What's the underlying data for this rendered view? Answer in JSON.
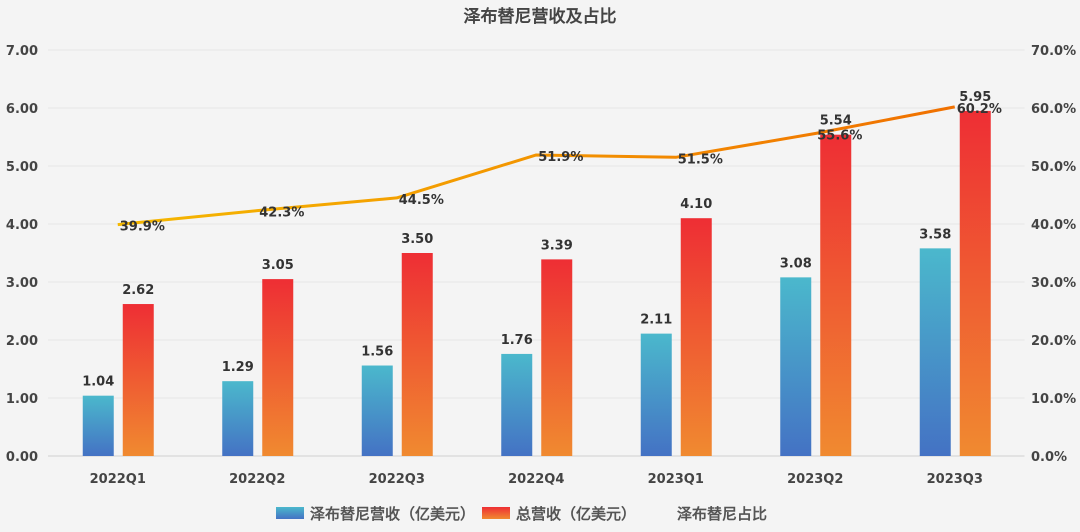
{
  "chart_data": {
    "type": "bar",
    "title": "泽布替尼营收及占比",
    "categories": [
      "2022Q1",
      "2022Q2",
      "2022Q3",
      "2022Q4",
      "2023Q1",
      "2023Q2",
      "2023Q3"
    ],
    "series": [
      {
        "name": "泽布替尼营收（亿美元）",
        "type": "bar",
        "axis": "left",
        "values": [
          1.04,
          1.29,
          1.56,
          1.76,
          2.11,
          3.08,
          3.58
        ],
        "labels": [
          "1.04",
          "1.29",
          "1.56",
          "1.76",
          "2.11",
          "3.08",
          "3.58"
        ],
        "color_top": "#4bb8cc",
        "color_bottom": "#4472c4"
      },
      {
        "name": "总营收（亿美元）",
        "type": "bar",
        "axis": "left",
        "values": [
          2.62,
          3.05,
          3.5,
          3.39,
          4.1,
          5.54,
          5.95
        ],
        "labels": [
          "2.62",
          "3.05",
          "3.50",
          "3.39",
          "4.10",
          "5.54",
          "5.95"
        ],
        "color_top": "#ee2e34",
        "color_bottom": "#f08a30"
      },
      {
        "name": "泽布替尼占比",
        "type": "line",
        "axis": "right",
        "values": [
          39.9,
          42.3,
          44.5,
          51.9,
          51.5,
          55.6,
          60.2
        ],
        "labels": [
          "39.9%",
          "42.3%",
          "44.5%",
          "51.9%",
          "51.5%",
          "55.6%",
          "60.2%"
        ],
        "color_start": "#f5b800",
        "color_end": "#f07000"
      }
    ],
    "y_left": {
      "range": [
        0,
        7
      ],
      "ticks": [
        "0.00",
        "1.00",
        "2.00",
        "3.00",
        "4.00",
        "5.00",
        "6.00",
        "7.00"
      ]
    },
    "y_right": {
      "range": [
        0,
        70
      ],
      "ticks": [
        "0.0%",
        "10.0%",
        "20.0%",
        "30.0%",
        "40.0%",
        "50.0%",
        "60.0%",
        "70.0%"
      ]
    },
    "grid": true,
    "legend": "bottom"
  }
}
